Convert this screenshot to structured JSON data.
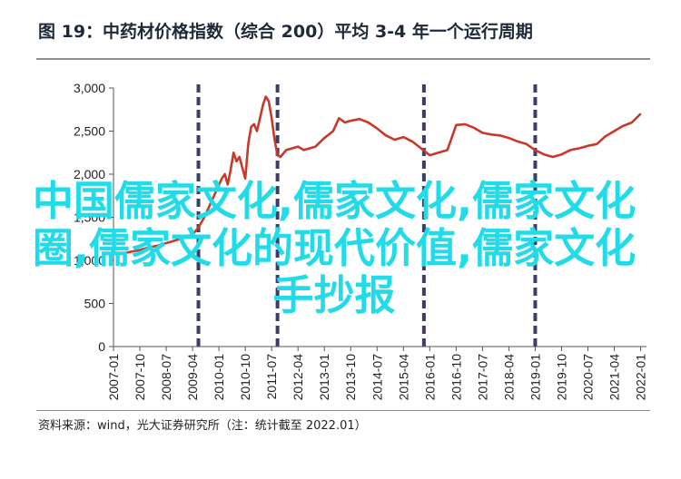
{
  "title": "图 19：中药材价格指数（综合 200）平均 3-4 年一个运行周期",
  "source": "资料来源：wind，光大证券研究所（注：统计截至 2022.01）",
  "watermark": "中国儒家文化,儒家文化,儒家文化圈,儒家文化的现代价值,儒家文化手抄报",
  "colors": {
    "line": "#c8392b",
    "cycle_marker": "#3b3d6b",
    "watermark": "#22dbe8"
  },
  "chart_data": {
    "type": "line",
    "title": "",
    "xlabel": "",
    "ylabel": "",
    "ylim": [
      0,
      3000
    ],
    "yticks": [
      0,
      500,
      1000,
      1500,
      2000,
      2500,
      3000
    ],
    "ytick_labels": [
      "0",
      "500",
      "1,000",
      "1,500",
      "2,000",
      "2,500",
      "3,000"
    ],
    "xlim": [
      "2007-01",
      "2022-03"
    ],
    "xtick_labels": [
      "2007-01",
      "2007-10",
      "2008-07",
      "2009-04",
      "2010-01",
      "2010-10",
      "2011-07",
      "2012-04",
      "2013-01",
      "2013-10",
      "2014-07",
      "2015-04",
      "2016-01",
      "2016-10",
      "2017-07",
      "2018-04",
      "2019-01",
      "2019-10",
      "2020-07",
      "2021-04",
      "2022-01"
    ],
    "cycle_markers": [
      "2009-06",
      "2011-09",
      "2015-11",
      "2019-01"
    ],
    "series": [
      {
        "points": [
          [
            "2007-01",
            1075
          ],
          [
            "2007-04",
            1080
          ],
          [
            "2007-07",
            1100
          ],
          [
            "2007-10",
            1120
          ],
          [
            "2008-01",
            1150
          ],
          [
            "2008-04",
            1170
          ],
          [
            "2008-07",
            1200
          ],
          [
            "2008-10",
            1230
          ],
          [
            "2009-01",
            1260
          ],
          [
            "2009-04",
            1300
          ],
          [
            "2009-06",
            1380
          ],
          [
            "2009-08",
            1500
          ],
          [
            "2009-10",
            1650
          ],
          [
            "2009-12",
            1800
          ],
          [
            "2010-02",
            1950
          ],
          [
            "2010-03",
            2000
          ],
          [
            "2010-04",
            1880
          ],
          [
            "2010-05",
            2050
          ],
          [
            "2010-06",
            2250
          ],
          [
            "2010-07",
            2150
          ],
          [
            "2010-08",
            2200
          ],
          [
            "2010-10",
            1950
          ],
          [
            "2010-11",
            2350
          ],
          [
            "2010-12",
            2550
          ],
          [
            "2011-01",
            2580
          ],
          [
            "2011-02",
            2500
          ],
          [
            "2011-03",
            2650
          ],
          [
            "2011-04",
            2800
          ],
          [
            "2011-05",
            2900
          ],
          [
            "2011-06",
            2850
          ],
          [
            "2011-07",
            2650
          ],
          [
            "2011-08",
            2400
          ],
          [
            "2011-09",
            2220
          ],
          [
            "2011-10",
            2200
          ],
          [
            "2011-12",
            2280
          ],
          [
            "2012-02",
            2300
          ],
          [
            "2012-04",
            2320
          ],
          [
            "2012-06",
            2280
          ],
          [
            "2012-08",
            2300
          ],
          [
            "2012-10",
            2320
          ],
          [
            "2013-01",
            2420
          ],
          [
            "2013-04",
            2500
          ],
          [
            "2013-06",
            2650
          ],
          [
            "2013-08",
            2600
          ],
          [
            "2013-10",
            2620
          ],
          [
            "2014-01",
            2640
          ],
          [
            "2014-04",
            2600
          ],
          [
            "2014-07",
            2530
          ],
          [
            "2014-10",
            2450
          ],
          [
            "2015-01",
            2400
          ],
          [
            "2015-04",
            2430
          ],
          [
            "2015-07",
            2380
          ],
          [
            "2015-10",
            2300
          ],
          [
            "2016-01",
            2220
          ],
          [
            "2016-04",
            2250
          ],
          [
            "2016-07",
            2280
          ],
          [
            "2016-10",
            2570
          ],
          [
            "2017-01",
            2580
          ],
          [
            "2017-04",
            2540
          ],
          [
            "2017-07",
            2480
          ],
          [
            "2017-10",
            2460
          ],
          [
            "2018-01",
            2450
          ],
          [
            "2018-04",
            2420
          ],
          [
            "2018-07",
            2380
          ],
          [
            "2018-10",
            2350
          ],
          [
            "2019-01",
            2280
          ],
          [
            "2019-04",
            2230
          ],
          [
            "2019-07",
            2200
          ],
          [
            "2019-10",
            2230
          ],
          [
            "2020-01",
            2280
          ],
          [
            "2020-04",
            2300
          ],
          [
            "2020-07",
            2330
          ],
          [
            "2020-10",
            2350
          ],
          [
            "2021-01",
            2440
          ],
          [
            "2021-04",
            2500
          ],
          [
            "2021-07",
            2560
          ],
          [
            "2021-10",
            2600
          ],
          [
            "2022-01",
            2700
          ]
        ]
      }
    ]
  }
}
